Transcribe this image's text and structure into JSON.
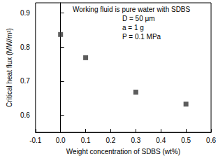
{
  "chart_data": {
    "type": "scatter",
    "x_label": "Weight concentration of SDBS (wt%)",
    "y_label": "Critical heat flux (MW/m²)",
    "annotations": [
      "Working fluid is pure water with SDBS",
      "D = 50 μm",
      "a = 1 g",
      "P = 0.1 MPa"
    ],
    "x": [
      0,
      0.1,
      0.3,
      0.5
    ],
    "values": [
      0.837,
      0.769,
      0.668,
      0.633
    ],
    "color": "#333333",
    "marker": "square",
    "xlim": [
      -0.1,
      0.6
    ],
    "xticks": [
      -0.1,
      {
        "value": 0,
        "label": "0.0"
      },
      0.1,
      0.2,
      0.3,
      0.4,
      0.5,
      0.6
    ],
    "ylim": [
      0.55,
      0.93
    ],
    "yticks": [
      0.6,
      0.7,
      0.8,
      0.9
    ],
    "grid": false
  }
}
